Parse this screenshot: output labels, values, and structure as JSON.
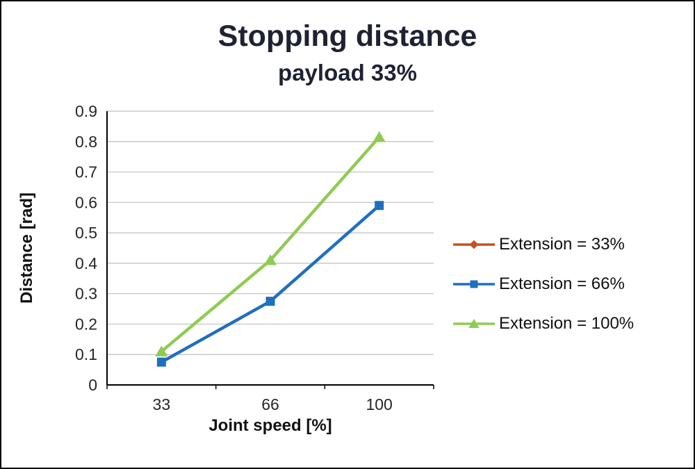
{
  "chart_data": {
    "type": "line",
    "title": "Stopping distance",
    "subtitle": "payload 33%",
    "xlabel": "Joint speed [%]",
    "ylabel": "Distance [rad]",
    "categories": [
      "33",
      "66",
      "100"
    ],
    "ylim": [
      0,
      0.9
    ],
    "ytick_labels": [
      "0",
      "0.1",
      "0.2",
      "0.3",
      "0.4",
      "0.5",
      "0.6",
      "0.7",
      "0.8",
      "0.9"
    ],
    "grid": true,
    "legend_position": "right",
    "colors": {
      "grid": "#BFBFBF",
      "axis": "#000000",
      "text": "#262626",
      "title": "#1F2233"
    },
    "series": [
      {
        "name": "Extension = 33%",
        "color": "#C5511B",
        "marker": "diamond",
        "values": [
          null,
          null,
          null
        ]
      },
      {
        "name": "Extension = 66%",
        "color": "#1F6FBF",
        "marker": "square",
        "values": [
          0.075,
          0.275,
          0.59
        ]
      },
      {
        "name": "Extension = 100%",
        "color": "#8FCB52",
        "marker": "triangle",
        "values": [
          0.11,
          0.41,
          0.815
        ]
      }
    ]
  }
}
